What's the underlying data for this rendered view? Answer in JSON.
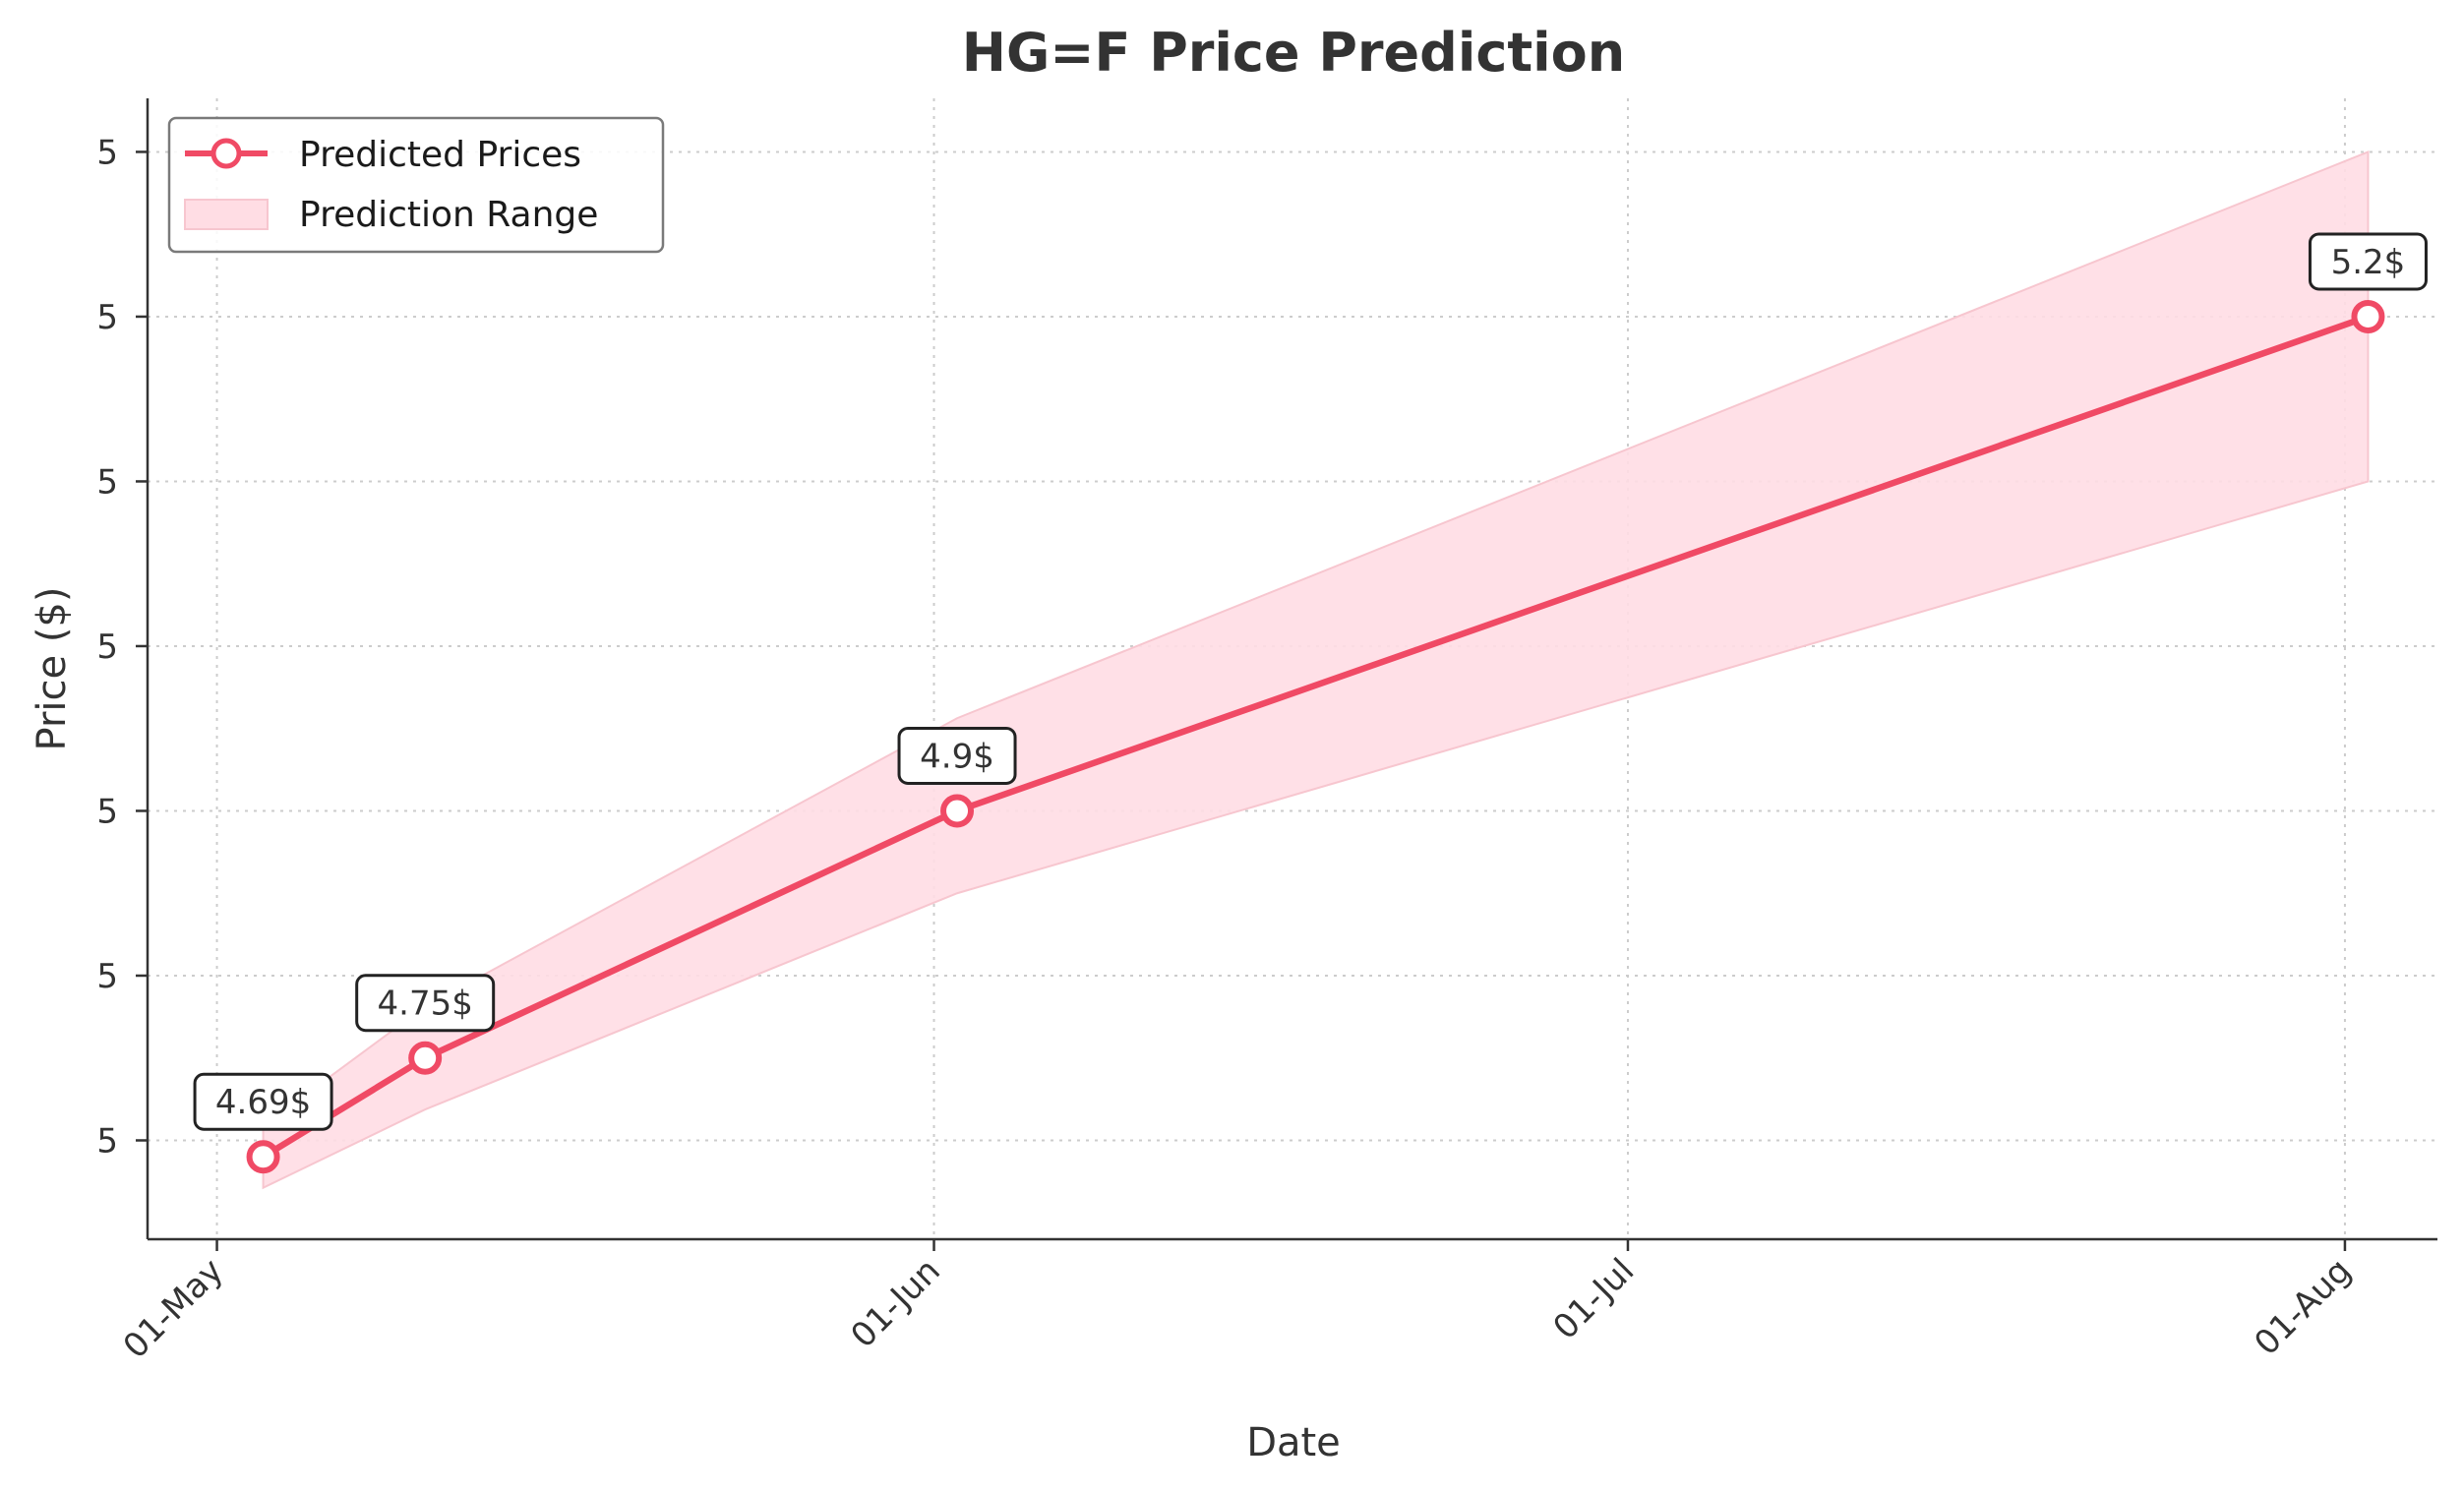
{
  "chart_data": {
    "type": "line",
    "title": "HG=F Price Prediction",
    "xlabel": "Date",
    "ylabel": "Price ($)",
    "x_ticks": [
      {
        "date": "2025-05-01",
        "label": "01-May"
      },
      {
        "date": "2025-06-01",
        "label": "01-Jun"
      },
      {
        "date": "2025-07-01",
        "label": "01-Jul"
      },
      {
        "date": "2025-08-01",
        "label": "01-Aug"
      }
    ],
    "y_ticks": [
      {
        "value": 4.68,
        "label": "5"
      },
      {
        "value": 4.76,
        "label": "5"
      },
      {
        "value": 4.84,
        "label": "5"
      },
      {
        "value": 4.92,
        "label": "5"
      },
      {
        "value": 5.0,
        "label": "5"
      },
      {
        "value": 5.08,
        "label": "5"
      },
      {
        "value": 5.16,
        "label": "5"
      }
    ],
    "xlim": [
      "2025-04-28",
      "2025-08-05"
    ],
    "ylim": [
      4.632,
      5.186
    ],
    "grid": true,
    "legend_position": "top-left",
    "colors": {
      "line": "#f04a65",
      "band": "#ffdde4",
      "band_edge": "#f7c6cf"
    },
    "series": [
      {
        "name": "Predicted Prices",
        "points": [
          {
            "date": "2025-05-03",
            "value": 4.672
          },
          {
            "date": "2025-05-10",
            "value": 4.72
          },
          {
            "date": "2025-06-02",
            "value": 4.84
          },
          {
            "date": "2025-08-02",
            "value": 5.08
          }
        ]
      }
    ],
    "band": {
      "name": "Prediction Range",
      "points": [
        {
          "date": "2025-05-03",
          "low": 4.657,
          "high": 4.687
        },
        {
          "date": "2025-05-10",
          "low": 4.695,
          "high": 4.745
        },
        {
          "date": "2025-06-02",
          "low": 4.8,
          "high": 4.885
        },
        {
          "date": "2025-08-02",
          "low": 5.0,
          "high": 5.16
        }
      ]
    },
    "annotations": [
      {
        "date": "2025-05-03",
        "value": 4.672,
        "label": "4.69$"
      },
      {
        "date": "2025-05-10",
        "value": 4.72,
        "label": "4.75$"
      },
      {
        "date": "2025-06-02",
        "value": 4.84,
        "label": "4.9$"
      },
      {
        "date": "2025-08-02",
        "value": 5.08,
        "label": "5.2$"
      }
    ]
  }
}
